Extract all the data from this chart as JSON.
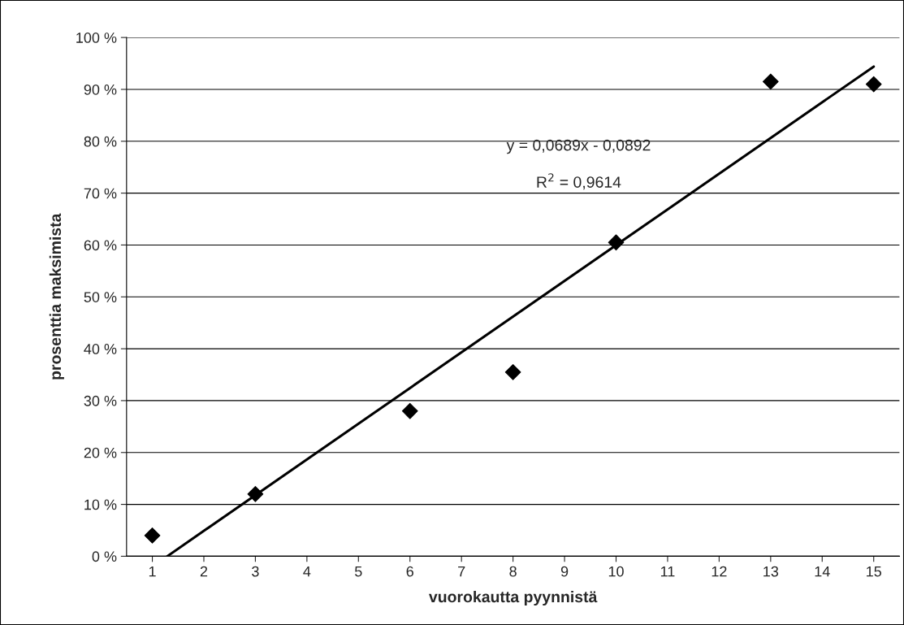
{
  "chart_data": {
    "type": "scatter",
    "xlabel": "vuorokautta pyynnistä",
    "ylabel": "prosenttia maksimista",
    "xlim": [
      0.5,
      15.5
    ],
    "xticks": [
      1,
      2,
      3,
      4,
      5,
      6,
      7,
      8,
      9,
      10,
      11,
      12,
      13,
      14,
      15
    ],
    "ylim": [
      0,
      100
    ],
    "yticks": [
      {
        "value": 0,
        "label": "0 %"
      },
      {
        "value": 10,
        "label": "10 %"
      },
      {
        "value": 20,
        "label": "20 %"
      },
      {
        "value": 30,
        "label": "30 %"
      },
      {
        "value": 40,
        "label": "40 %"
      },
      {
        "value": 50,
        "label": "50 %"
      },
      {
        "value": 60,
        "label": "60 %"
      },
      {
        "value": 70,
        "label": "70 %"
      },
      {
        "value": 80,
        "label": "80 %"
      },
      {
        "value": 90,
        "label": "90 %"
      },
      {
        "value": 100,
        "label": "100 %"
      }
    ],
    "grid": "y",
    "legend": false,
    "marker": "diamond",
    "series": [
      {
        "color": "#000000",
        "x": [
          1,
          3,
          6,
          8,
          10,
          13,
          15
        ],
        "values": [
          4,
          12,
          28,
          35.5,
          60.5,
          91.5,
          91
        ]
      },
      {
        "type": "line",
        "marker": "none",
        "color": "#000000",
        "x": [
          1.29,
          15
        ],
        "values": [
          0,
          94.4
        ]
      }
    ],
    "annotations": [
      "y = 0,0689x - 0,0892",
      "R$^{2}$ = 0,9614"
    ]
  }
}
